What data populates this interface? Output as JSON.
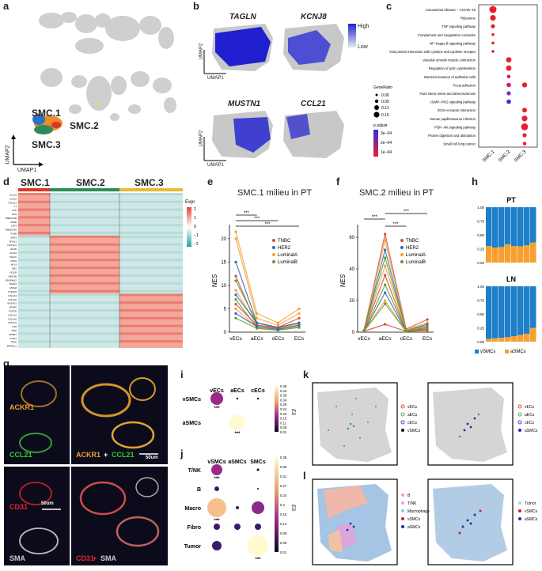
{
  "panels": {
    "a": {
      "label": "a",
      "clusters": [
        "SMC.1",
        "SMC.2",
        "SMC.3"
      ],
      "xlabel": "UMAP1",
      "ylabel": "UMAP2",
      "colors": {
        "smc1": "#d7372b",
        "smc2": "#ef8d28",
        "smc3": "#2e8b57",
        "smc_blue": "#2a74c7"
      }
    },
    "b": {
      "label": "b",
      "genes": [
        "TAGLN",
        "KCNJ8",
        "MUSTN1",
        "CCL21"
      ],
      "xlabel": "UMAP1",
      "ylabel": "UMAP2",
      "legend_high": "High",
      "legend_low": "Low"
    },
    "c": {
      "label": "c",
      "generatio_title": "GeneRatio",
      "generatio_values": [
        "0.06",
        "0.09",
        "0.12",
        "0.15"
      ],
      "padj_title": "p.adjust",
      "padj_values": [
        "3e−04",
        "2e−04",
        "1e−04"
      ],
      "xticks": [
        "SMC.1",
        "SMC.2",
        "SMC.3"
      ],
      "pathways": [
        "Coronavirus disease − COVID−19",
        "Ribosome",
        "TNF signaling pathway",
        "Complement and coagulation cascades",
        "NF−kappa B signaling pathway",
        "Viral protein interaction with cytokine and cytokine receptor",
        "Vascular smooth muscle contraction",
        "Regulation of actin cytoskeleton",
        "Bacterial invasion of epithelial cells",
        "Focal adhesion",
        "Fluid shear stress and atherosclerosis",
        "cGMP−PKG signaling pathway",
        "ECM−receptor interaction",
        "Human papillomavirus infection",
        "PI3K−Akt signaling pathway",
        "Protein digestion and absorption",
        "Small cell lung cancer"
      ]
    },
    "d": {
      "label": "d",
      "groups": [
        "SMC.1",
        "SMC.2",
        "SMC.3"
      ],
      "legend_title": "Expr",
      "legend_ticks": [
        "2",
        "1",
        "0",
        "−1",
        "−2"
      ],
      "genes": [
        "CCL19",
        "CCL21",
        "CXCL12",
        "C7",
        "CFD",
        "DCN",
        "TMEM176B",
        "APOE",
        "CD74",
        "TMEM176A",
        "FOSB",
        "EGR1",
        "MYH11",
        "NOTCH3",
        "RGS5",
        "ACTA2",
        "TAGLN",
        "CNN1",
        "MYL9",
        "DES",
        "KCNJ8",
        "HIGD1B",
        "NDUFA4L2",
        "RGS16",
        "MCAM",
        "STEAP4",
        "COL4A1",
        "COL4A2",
        "MUSTN1",
        "SPARC",
        "POSTN",
        "COL1A1",
        "COL1A2",
        "COL3A1",
        "LUM",
        "MGP",
        "IGFBP7",
        "CALD1",
        "TPM2",
        "SPARCL1"
      ]
    },
    "e": {
      "label": "e",
      "title": "SMC.1 milieu in PT",
      "xcats": [
        "vECs",
        "aECs",
        "cECs",
        "ECs"
      ],
      "ylabel": "NES",
      "yticks": [
        "0",
        "5",
        "10",
        "15",
        "20"
      ],
      "legend": [
        "TNBC",
        "HER2",
        "LuminalA",
        "LuminalB"
      ],
      "sig": "***"
    },
    "f": {
      "label": "f",
      "title": "SMC.2 milieu in PT",
      "xcats": [
        "vECs",
        "aECs",
        "cECs",
        "ECs"
      ],
      "ylabel": "NES",
      "yticks": [
        "0",
        "20",
        "40",
        "60"
      ],
      "legend": [
        "TNBC",
        "HER2",
        "LuminalA",
        "LuminalB"
      ],
      "sig": "***"
    },
    "h": {
      "label": "h",
      "titles": [
        "PT",
        "LN"
      ],
      "yticks": [
        "1.00",
        "0.75",
        "0.50",
        "0.25",
        "0.00"
      ],
      "legend": [
        "vSMCs",
        "aSMCs"
      ],
      "pt_asmc": [
        0.3,
        0.27,
        0.28,
        0.33,
        0.3,
        0.29,
        0.31,
        0.36
      ],
      "ln_asmc": [
        0.05,
        0.06,
        0.07,
        0.08,
        0.1,
        0.12,
        0.14,
        0.25
      ],
      "colors": {
        "vsmc": "#1f7fc8",
        "asmc": "#f7a030"
      }
    },
    "g": {
      "label": "g",
      "markers": [
        "ACKR1",
        "CCL21",
        "CD31",
        "SMA"
      ],
      "merge1": [
        "ACKR1",
        "+",
        "CCL21"
      ],
      "merge2": [
        "CD31",
        "+",
        "SMA"
      ],
      "scale_top": "50um",
      "scale_bottom": "50um"
    },
    "i": {
      "label": "i",
      "cols": [
        "vECs",
        "aECs",
        "cECs"
      ],
      "rows": [
        "vSMCs",
        "aSMCs"
      ],
      "es_title": "ES",
      "es_ticks": [
        "0.48",
        "0.44",
        "0.39",
        "0.34",
        "0.29",
        "0.24",
        "0.20",
        "0.15",
        "0.11",
        "0.06",
        "0.01"
      ],
      "sig": "***"
    },
    "j": {
      "label": "j",
      "cols": [
        "vSMCs",
        "aSMCs",
        "SMCs"
      ],
      "rows": [
        "T/NK",
        "B",
        "Macro",
        "Fibro",
        "Tumor"
      ],
      "es_title": "ES",
      "es_ticks": [
        "0.38",
        "0.35",
        "0.31",
        "0.27",
        "0.24",
        "0.2",
        "0.16",
        "0.12",
        "0.09",
        "0.05",
        "0.01"
      ],
      "sig": "***"
    },
    "k": {
      "label": "k",
      "legend": [
        "vECs",
        "aECs",
        "cECs",
        "vSMCs"
      ],
      "legend2": [
        "vECs",
        "aECs",
        "cECs",
        "aSMCs"
      ]
    },
    "l": {
      "label": "l",
      "legend": [
        "B",
        "T/NK",
        "Macrophage",
        "vSMCs",
        "aSMCs"
      ],
      "legend2": [
        "Tumor",
        "vSMCs",
        "aSMCs"
      ]
    }
  }
}
